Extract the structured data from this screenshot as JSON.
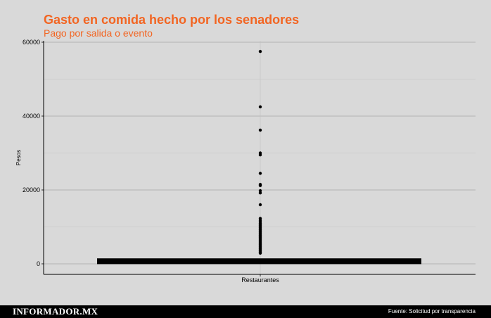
{
  "header": {
    "title": "Gasto en comida hecho por los senadores",
    "subtitle": "Pago por salida o evento"
  },
  "footer": {
    "brand": "INFORMADOR.MX",
    "source": "Fuente: Solicitud por transparencia"
  },
  "colors": {
    "background": "#d9d9d9",
    "title": "#f26522",
    "grid": "#a6a6a6",
    "points": "#000000",
    "footer_bg": "#000000"
  },
  "chart_data": {
    "type": "boxplot",
    "title": "Gasto en comida hecho por los senadores",
    "subtitle": "Pago por salida o evento",
    "xlabel": "",
    "ylabel": "Pesos",
    "categories": [
      "Restaurantes"
    ],
    "ylim": [
      -3000,
      60500
    ],
    "yticks": [
      0,
      20000,
      40000,
      60000
    ],
    "grid": true,
    "box": {
      "category": "Restaurantes",
      "q1": 300,
      "median": 700,
      "q3": 1100
    },
    "outliers": [
      57500,
      42500,
      36200,
      30000,
      29500,
      24500,
      21500,
      21200,
      19800,
      19200,
      16000,
      12300,
      11800,
      11400,
      11000,
      10700,
      10400,
      10100,
      9800,
      9500,
      9200,
      8900,
      8600,
      8300,
      8000,
      7700,
      7400,
      7100,
      6800,
      6500,
      6200,
      5900,
      5600,
      5300,
      5000,
      4700,
      4400,
      4100,
      3800,
      3500,
      3200,
      2900
    ]
  }
}
